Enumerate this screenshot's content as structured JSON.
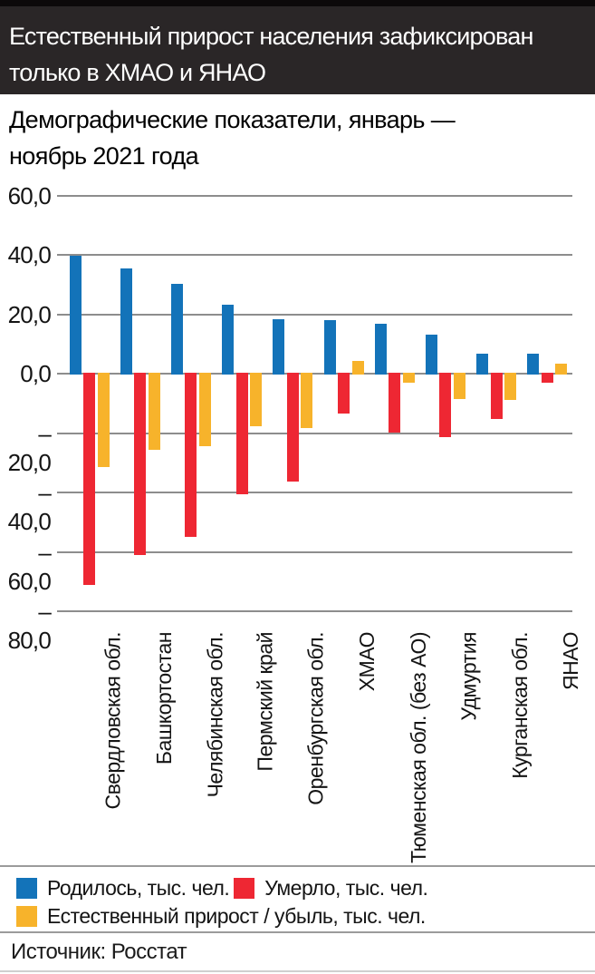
{
  "header": {
    "title_line1": "Естественный прирост населения зафиксирован",
    "title_line2": "только в ХМАО и ЯНАО"
  },
  "subtitle": {
    "line1": "Демографические показатели, январь —",
    "line2": "ноябрь 2021 года"
  },
  "chart_data": {
    "type": "bar",
    "title": "Демографические показатели, январь — ноябрь 2021 года",
    "categories": [
      "Свердловская обл.",
      "Башкортостан",
      "Челябинская обл.",
      "Пермский край",
      "Оренбургская обл.",
      "ХМАО",
      "Тюменская обл. (без АО)",
      "Удмуртия",
      "Курганская обл.",
      "ЯНАО"
    ],
    "series": [
      {
        "key": "born",
        "name": "Родилось, тыс. чел.",
        "color": "#1373b9",
        "values": [
          39.6,
          35.6,
          30.4,
          23.1,
          18.2,
          18.1,
          16.9,
          13.0,
          6.6,
          6.6
        ]
      },
      {
        "key": "died",
        "name": "Умерло, тыс. чел.",
        "color": "#ee2733",
        "values": [
          -71.1,
          -61.1,
          -55.0,
          -40.8,
          -36.5,
          -13.6,
          -19.9,
          -21.5,
          -15.4,
          -3.2
        ]
      },
      {
        "key": "natural-change",
        "name": "Естественный прирост / убыль, тыс. чел.",
        "color": "#f7b32b",
        "values": [
          -31.5,
          -25.6,
          -24.6,
          -17.7,
          -18.3,
          4.4,
          -3.0,
          -8.5,
          -8.8,
          3.4
        ]
      }
    ],
    "ylim": [
      -80,
      60
    ],
    "grid": true,
    "legend_position": "bottom",
    "yticks": [
      {
        "value": 60,
        "label": "60,0"
      },
      {
        "value": 40,
        "label": "40,0"
      },
      {
        "value": 20,
        "label": "20,0"
      },
      {
        "value": 0,
        "label": "0,0"
      },
      {
        "value": -20,
        "label": "–20,0"
      },
      {
        "value": -40,
        "label": "–40,0"
      },
      {
        "value": -60,
        "label": "–60,0"
      },
      {
        "value": -80,
        "label": "–80,0"
      }
    ]
  },
  "footer": {
    "source": "Источник: Росстат"
  },
  "colors": {
    "banner_background": "#2a2627",
    "banner_text": "#ffffff",
    "gridline": "#8d8d8d",
    "divider": "#9b9b9b"
  }
}
